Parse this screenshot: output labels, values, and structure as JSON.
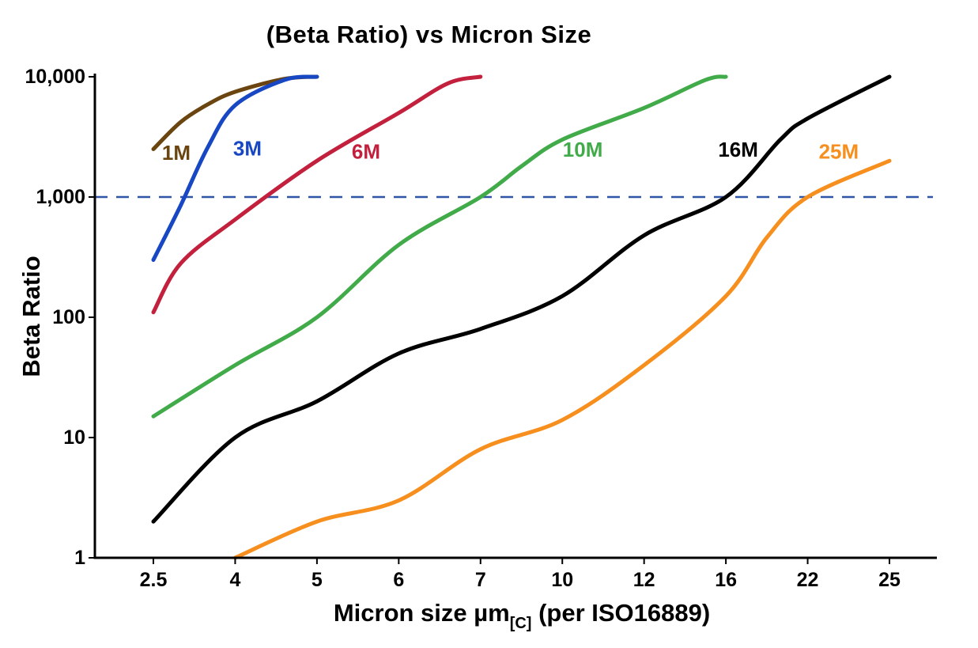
{
  "page": {
    "background": "#ffffff"
  },
  "chart_data": {
    "type": "line",
    "title": "(Beta Ratio) vs Micron Size",
    "ylabel": "Beta Ratio",
    "xlabel": "Micron size µm[C] (per ISO16889)",
    "xlabel_parts": {
      "pre": "Micron size µm",
      "sub": "[C]",
      "post": " (per ISO16889)"
    },
    "x_scale": "categorical",
    "x_categories": [
      2.5,
      4,
      5,
      6,
      7,
      10,
      12,
      16,
      22,
      25
    ],
    "x_tick_labels": [
      "2.5",
      "4",
      "5",
      "6",
      "7",
      "10",
      "12",
      "16",
      "22",
      "25"
    ],
    "y_scale": "log",
    "ylim": [
      1,
      10000
    ],
    "y_ticks": [
      1,
      10,
      100,
      1000,
      10000
    ],
    "y_tick_labels": [
      "1",
      "10",
      "100",
      "1,000",
      "10,000"
    ],
    "grid": false,
    "legend": "inline-curve-labels",
    "axis_color": "#000000",
    "reference_line": {
      "y": 1000,
      "style": "dashed",
      "color": "#2e55a8"
    },
    "series": [
      {
        "name": "1M",
        "color": "#6b450f",
        "label": {
          "x_index": 0.28,
          "y": 2300
        },
        "points": [
          [
            2.5,
            2500
          ],
          [
            3,
            4200
          ],
          [
            3.5,
            5900
          ],
          [
            4,
            7500
          ],
          [
            4.6,
            9600
          ],
          [
            5,
            10000
          ]
        ]
      },
      {
        "name": "3M",
        "color": "#1747c2",
        "label": {
          "x_index": 1.15,
          "y": 2500
        },
        "points": [
          [
            2.5,
            300
          ],
          [
            3,
            850
          ],
          [
            3.5,
            2600
          ],
          [
            4,
            5800
          ],
          [
            4.6,
            9400
          ],
          [
            5,
            10000
          ]
        ]
      },
      {
        "name": "6M",
        "color": "#c2203c",
        "label": {
          "x_index": 2.6,
          "y": 2350
        },
        "points": [
          [
            2.5,
            110
          ],
          [
            3,
            280
          ],
          [
            4,
            650
          ],
          [
            5,
            2000
          ],
          [
            6,
            5000
          ],
          [
            6.6,
            8800
          ],
          [
            7,
            10000
          ]
        ]
      },
      {
        "name": "10M",
        "color": "#41ab4a",
        "label": {
          "x_index": 5.25,
          "y": 2450
        },
        "points": [
          [
            2.5,
            15
          ],
          [
            4,
            40
          ],
          [
            5,
            100
          ],
          [
            6,
            400
          ],
          [
            7,
            1000
          ],
          [
            8.5,
            1800
          ],
          [
            10,
            3000
          ],
          [
            12,
            5500
          ],
          [
            15,
            9400
          ],
          [
            16,
            10000
          ]
        ]
      },
      {
        "name": "16M",
        "color": "#000000",
        "label": {
          "x_index": 7.15,
          "y": 2450
        },
        "points": [
          [
            2.5,
            2
          ],
          [
            4,
            10
          ],
          [
            5,
            20
          ],
          [
            6,
            50
          ],
          [
            7,
            80
          ],
          [
            10,
            150
          ],
          [
            12,
            480
          ],
          [
            16,
            1000
          ],
          [
            20,
            3000
          ],
          [
            22,
            4500
          ],
          [
            25,
            10000
          ]
        ]
      },
      {
        "name": "25M",
        "color": "#f78f1e",
        "label": {
          "x_index": 8.38,
          "y": 2350
        },
        "points": [
          [
            4,
            1
          ],
          [
            5,
            2
          ],
          [
            6,
            3
          ],
          [
            7,
            8
          ],
          [
            10,
            14
          ],
          [
            12,
            40
          ],
          [
            16,
            150
          ],
          [
            19,
            460
          ],
          [
            22,
            1000
          ],
          [
            25,
            2000
          ]
        ]
      }
    ]
  }
}
